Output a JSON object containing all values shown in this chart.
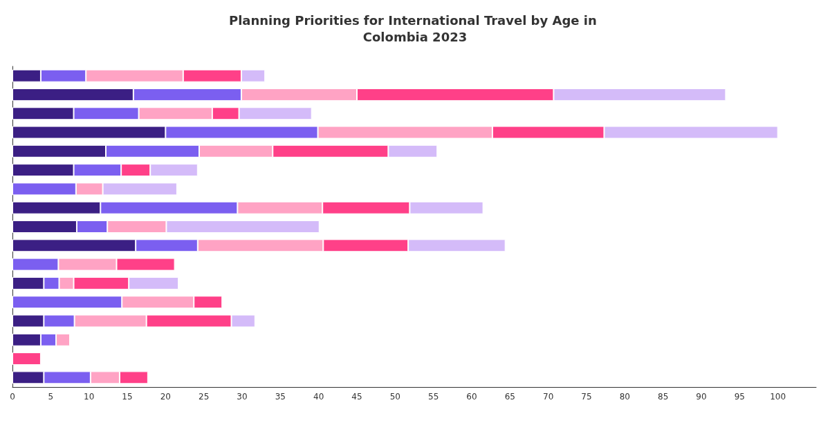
{
  "chart_data": {
    "type": "bar",
    "orientation": "horizontal",
    "stacked": true,
    "title": "Planning Priorities for International Travel by Age in Colombia 2023",
    "categories": [
      null,
      null,
      null,
      null,
      null,
      null,
      null,
      null,
      null,
      null,
      null,
      null,
      null,
      null,
      null,
      null,
      null
    ],
    "series": [
      {
        "color": "#3b1f84",
        "values": [
          3.7,
          15.8,
          8.0,
          20.0,
          12.2,
          8.0,
          null,
          11.5,
          8.4,
          16.1,
          null,
          4.1,
          null,
          4.1,
          3.7,
          null,
          4.1
        ]
      },
      {
        "color": "#7b5ff0",
        "values": [
          5.9,
          14.1,
          8.5,
          19.9,
          12.2,
          6.2,
          8.3,
          17.9,
          4.0,
          8.1,
          6.0,
          2.0,
          14.3,
          4.0,
          2.0,
          null,
          6.1
        ]
      },
      {
        "color": "#ffa3c4",
        "values": [
          12.7,
          15.1,
          9.6,
          22.8,
          9.6,
          null,
          3.5,
          11.1,
          7.7,
          16.4,
          7.6,
          1.9,
          9.4,
          9.4,
          1.8,
          null,
          3.8
        ]
      },
      {
        "color": "#ff4088",
        "values": [
          7.6,
          25.7,
          3.5,
          14.6,
          15.1,
          3.8,
          null,
          11.4,
          null,
          11.1,
          7.6,
          7.2,
          3.7,
          11.1,
          null,
          3.7,
          3.7
        ]
      },
      {
        "color": "#d4bbf9",
        "values": [
          3.1,
          22.5,
          9.5,
          22.7,
          6.4,
          6.2,
          9.7,
          9.6,
          20.0,
          12.7,
          null,
          6.5,
          null,
          3.1,
          null,
          null,
          null
        ]
      }
    ],
    "xlim": [
      0,
      105
    ],
    "xticks": [
      0,
      5,
      10,
      15,
      20,
      25,
      30,
      35,
      40,
      45,
      50,
      55,
      60,
      65,
      70,
      75,
      80,
      85,
      90,
      95,
      100
    ],
    "grid": false,
    "tick_labels": "x"
  }
}
